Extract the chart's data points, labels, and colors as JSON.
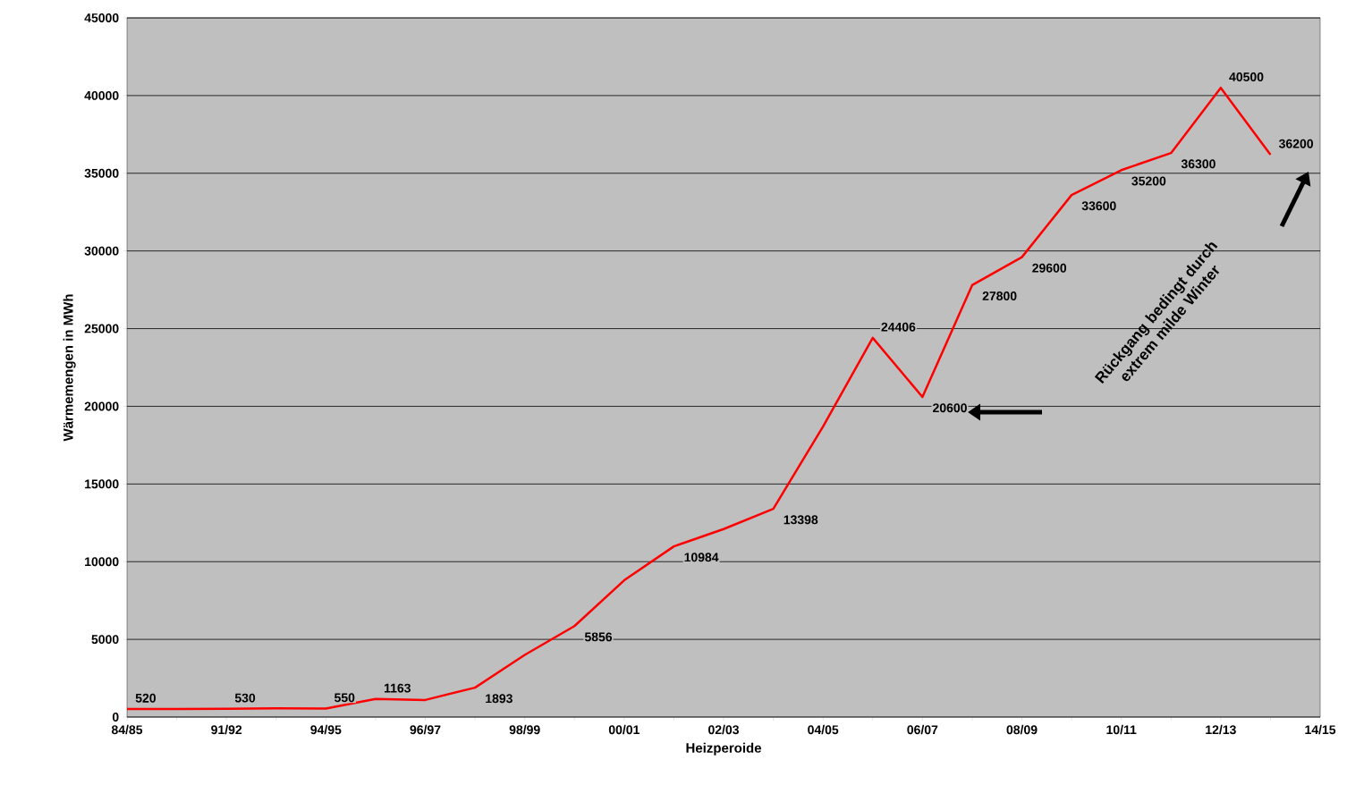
{
  "chart_data": {
    "type": "line",
    "xlabel": "Heizperoide",
    "ylabel": "Wärmemengen  in MWh",
    "categories": [
      "84/85",
      null,
      "91/92",
      null,
      "94/95",
      null,
      "96/97",
      null,
      "98/99",
      null,
      "00/01",
      null,
      "02/03",
      null,
      "04/05",
      null,
      "06/07",
      null,
      "08/09",
      null,
      "10/11",
      null,
      "12/13",
      null,
      "14/15"
    ],
    "series": [
      {
        "color": "#ff0000",
        "values": [
          520,
          520,
          530,
          560,
          550,
          1163,
          1100,
          1893,
          4000,
          5856,
          8800,
          10984,
          12100,
          13398,
          18700,
          24406,
          20600,
          27800,
          29600,
          33600,
          35200,
          36300,
          40500,
          36200,
          null
        ],
        "value_labels": [
          "520",
          null,
          "530",
          null,
          "550",
          "1163",
          null,
          "1893",
          null,
          "5856",
          null,
          "10984",
          null,
          "13398",
          null,
          "24406",
          "20600",
          "27800",
          "29600",
          "33600",
          "35200",
          "36300",
          "40500",
          "36200",
          null
        ]
      }
    ],
    "ylim": [
      0,
      45000
    ],
    "yticks": [
      0,
      5000,
      10000,
      15000,
      20000,
      25000,
      30000,
      35000,
      40000,
      45000
    ],
    "grid": "y",
    "marker": "none",
    "line_style": "solid",
    "annotations": [
      "Rückgang bedingt durch extrem milde Winter"
    ]
  }
}
